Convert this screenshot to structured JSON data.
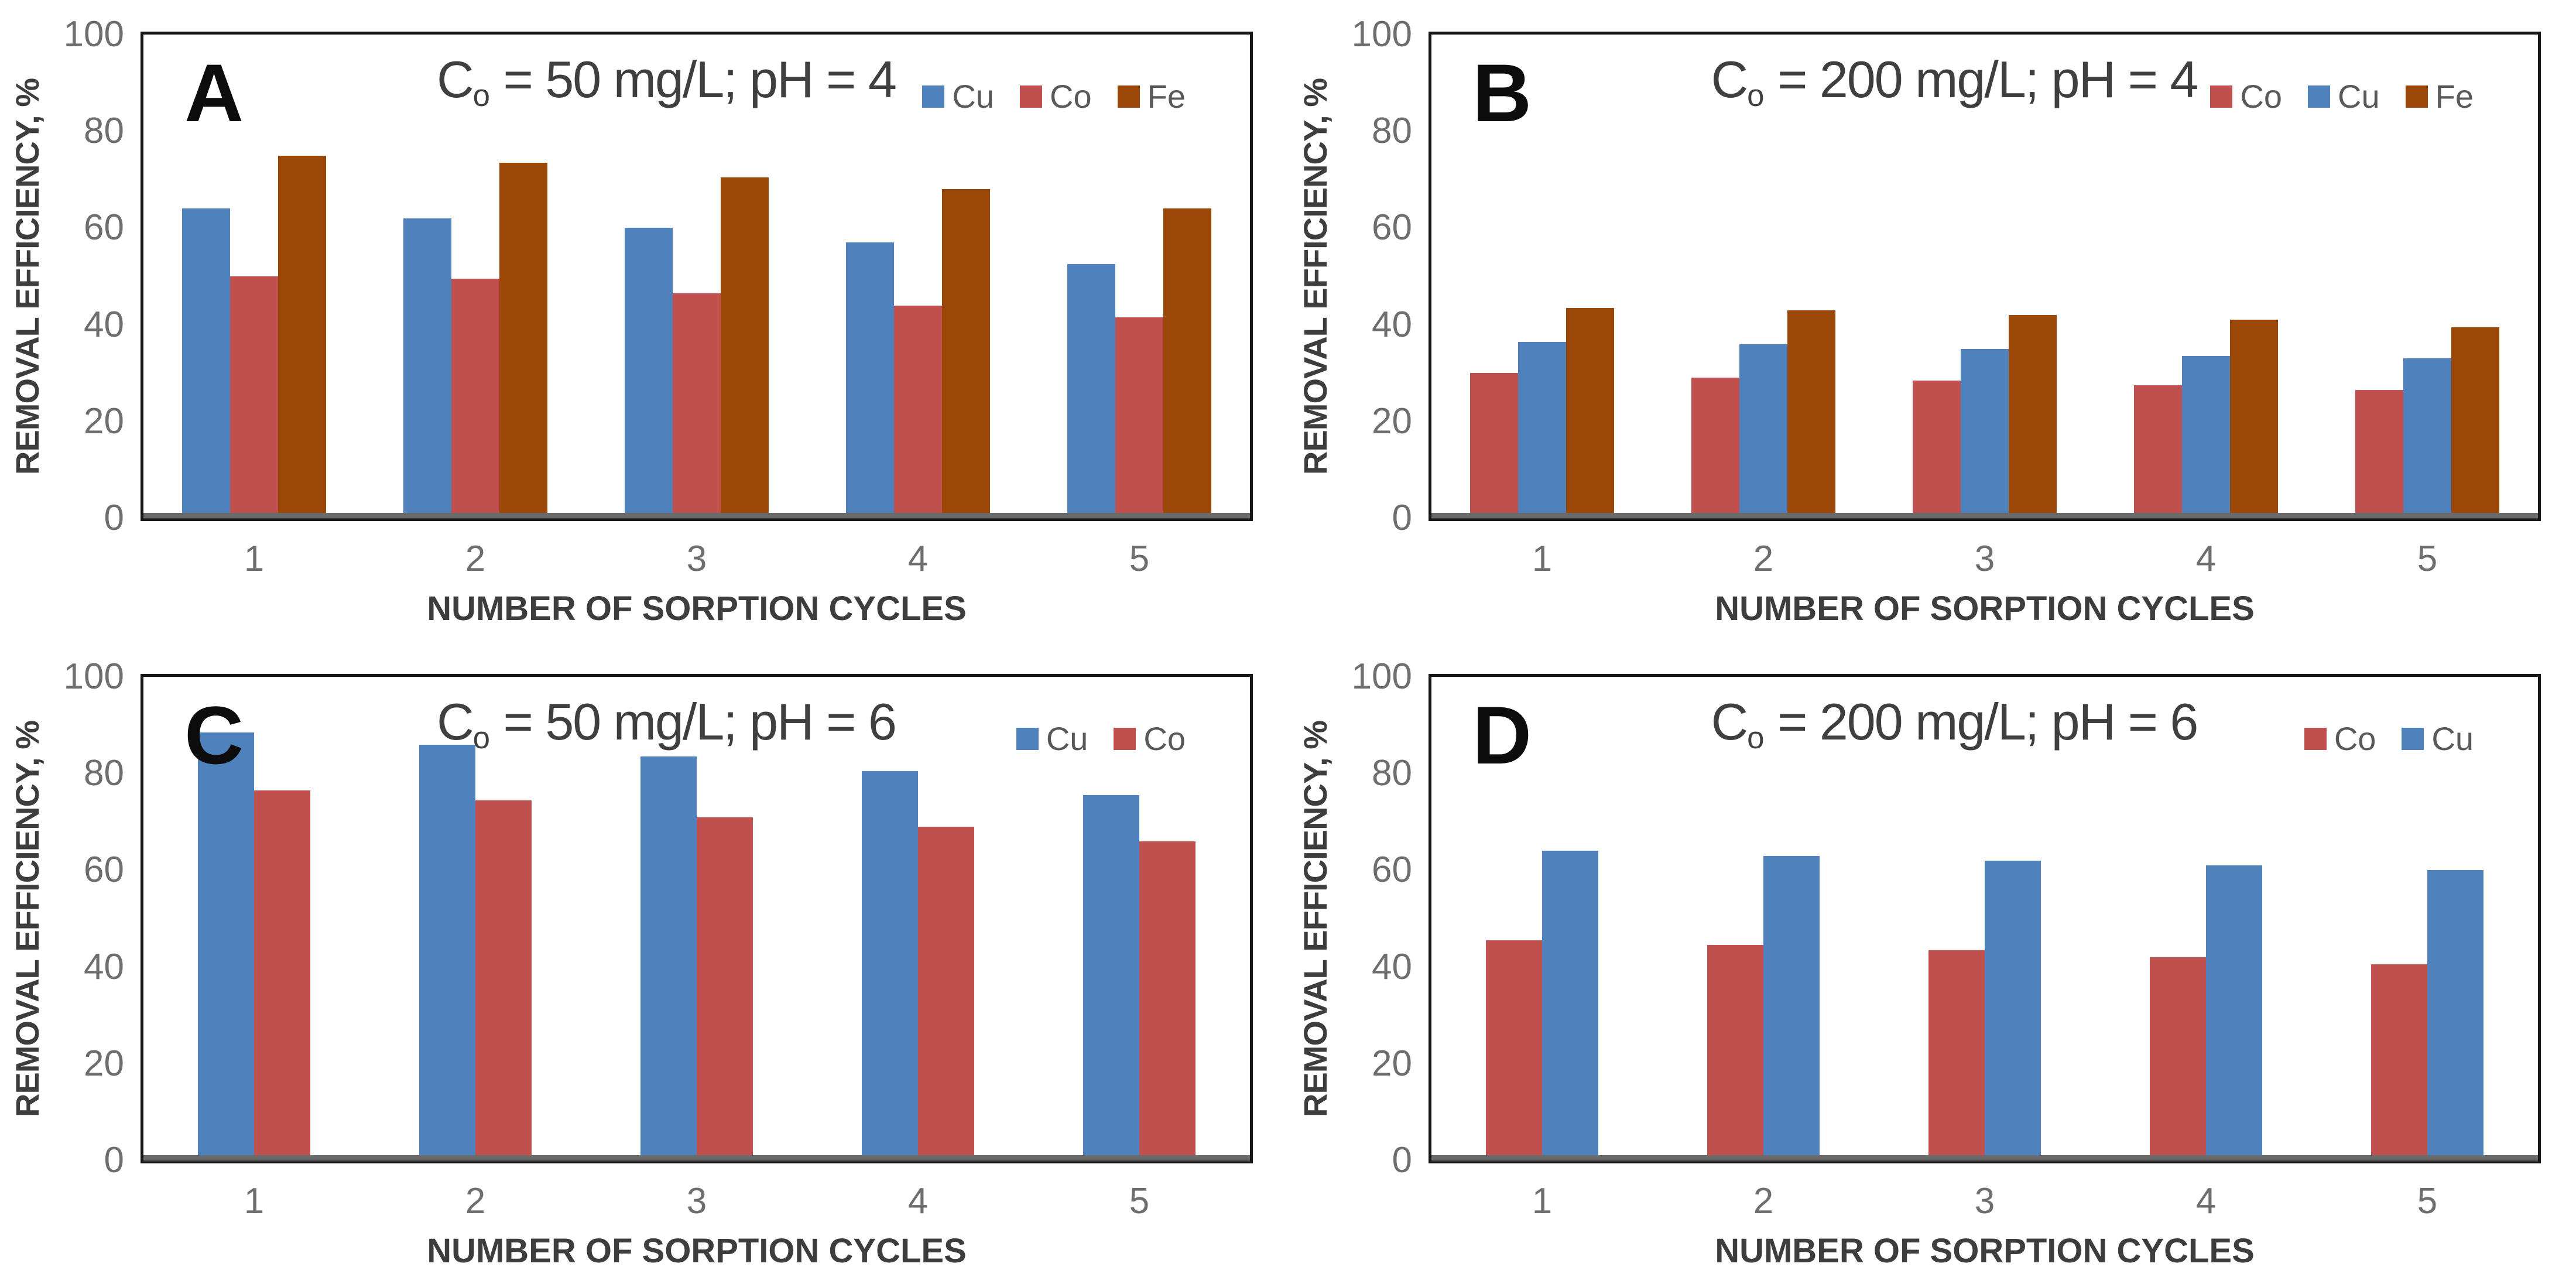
{
  "figure": {
    "ylabel": "REMOVAL EFFICIENCY, %",
    "xlabel": "NUMBER OF SORPTION CYCLES",
    "yticks": [
      0,
      20,
      40,
      60,
      80,
      100
    ],
    "ylim": [
      0,
      100
    ],
    "categories": [
      "1",
      "2",
      "3",
      "4",
      "5"
    ],
    "series_colors": {
      "Cu": "#4F81BD",
      "Co": "#C0504D",
      "Fe": "#9A4708"
    },
    "axis_text_color": "#6e6e6e",
    "axis_title_color": "#3d3d3d",
    "legend_text_color": "#595959",
    "grid": "off",
    "legend_position": "top-right-inside"
  },
  "chart_data": [
    {
      "panel": "A",
      "type": "bar",
      "title": {
        "base": "C",
        "sub": "o",
        "rest": " = 50 mg/L; pH = 4",
        "text": "Co = 50 mg/L; pH = 4"
      },
      "legend": [
        "Cu",
        "Co",
        "Fe"
      ],
      "categories": [
        "1",
        "2",
        "3",
        "4",
        "5"
      ],
      "series": [
        {
          "name": "Cu",
          "values": [
            64,
            62,
            60,
            57,
            52.5
          ]
        },
        {
          "name": "Co",
          "values": [
            50,
            49.5,
            46.5,
            44,
            41.5
          ]
        },
        {
          "name": "Fe",
          "values": [
            75,
            73.5,
            70.5,
            68,
            64
          ]
        }
      ],
      "xlabel": "NUMBER OF SORPTION CYCLES",
      "ylabel": "REMOVAL EFFICIENCY, %",
      "ylim": [
        0,
        100
      ]
    },
    {
      "panel": "B",
      "type": "bar",
      "title": {
        "base": "C",
        "sub": "o",
        "rest": " = 200 mg/L; pH = 4",
        "text": "Co = 200 mg/L; pH = 4"
      },
      "legend": [
        "Co",
        "Cu",
        "Fe"
      ],
      "categories": [
        "1",
        "2",
        "3",
        "4",
        "5"
      ],
      "series": [
        {
          "name": "Co",
          "values": [
            30,
            29,
            28.5,
            27.5,
            26.5
          ]
        },
        {
          "name": "Cu",
          "values": [
            36.5,
            36,
            35,
            33.5,
            33
          ]
        },
        {
          "name": "Fe",
          "values": [
            43.5,
            43,
            42,
            41,
            39.5
          ]
        }
      ],
      "xlabel": "NUMBER OF SORPTION CYCLES",
      "ylabel": "REMOVAL EFFICIENCY, %",
      "ylim": [
        0,
        100
      ]
    },
    {
      "panel": "C",
      "type": "bar",
      "title": {
        "base": "C",
        "sub": "o",
        "rest": " = 50 mg/L; pH = 6",
        "text": "Co = 50 mg/L; pH = 6"
      },
      "legend": [
        "Cu",
        "Co"
      ],
      "categories": [
        "1",
        "2",
        "3",
        "4",
        "5"
      ],
      "series": [
        {
          "name": "Cu",
          "values": [
            88.5,
            86,
            83.5,
            80.5,
            75.5
          ]
        },
        {
          "name": "Co",
          "values": [
            76.5,
            74.5,
            71,
            69,
            66
          ]
        }
      ],
      "xlabel": "NUMBER OF SORPTION CYCLES",
      "ylabel": "REMOVAL EFFICIENCY, %",
      "ylim": [
        0,
        100
      ]
    },
    {
      "panel": "D",
      "type": "bar",
      "title": {
        "base": "C",
        "sub": "o",
        "rest": " = 200 mg/L; pH = 6",
        "text": "Co = 200 mg/L; pH = 6"
      },
      "legend": [
        "Co",
        "Cu"
      ],
      "categories": [
        "1",
        "2",
        "3",
        "4",
        "5"
      ],
      "series": [
        {
          "name": "Co",
          "values": [
            45.5,
            44.5,
            43.5,
            42,
            40.5
          ]
        },
        {
          "name": "Cu",
          "values": [
            64,
            63,
            62,
            61,
            60
          ]
        }
      ],
      "xlabel": "NUMBER OF SORPTION CYCLES",
      "ylabel": "REMOVAL EFFICIENCY, %",
      "ylim": [
        0,
        100
      ]
    }
  ]
}
